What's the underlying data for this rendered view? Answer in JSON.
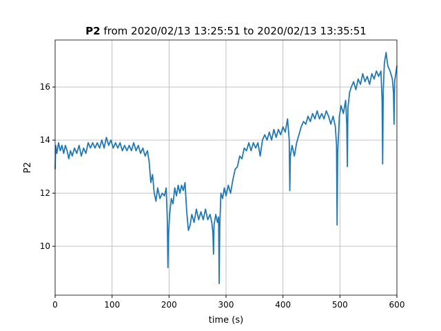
{
  "chart_data": {
    "type": "line",
    "title_name": "P2",
    "title_rest": "from 2020/02/13 13:25:51 to 2020/02/13 13:35:51",
    "xlabel": "time (s)",
    "ylabel": "P2",
    "xlim": [
      0,
      600
    ],
    "xticks": [
      0,
      100,
      200,
      300,
      400,
      500,
      600
    ],
    "ylim": [
      8.16,
      17.77
    ],
    "yticks": [
      10,
      12,
      14,
      16
    ],
    "grid": true,
    "series": [
      {
        "color": "#1f77b4",
        "x": [
          0,
          1,
          3,
          6,
          9,
          12,
          15,
          18,
          21,
          24,
          27,
          30,
          34,
          38,
          42,
          46,
          50,
          54,
          58,
          62,
          66,
          70,
          74,
          78,
          82,
          86,
          90,
          94,
          98,
          102,
          106,
          110,
          114,
          118,
          122,
          126,
          130,
          134,
          138,
          142,
          146,
          150,
          154,
          158,
          162,
          165,
          168,
          171,
          174,
          177,
          180,
          184,
          188,
          192,
          195,
          197,
          198,
          199,
          201,
          204,
          207,
          210,
          213,
          216,
          219,
          222,
          225,
          228,
          231,
          234,
          237,
          240,
          244,
          248,
          252,
          256,
          260,
          264,
          268,
          272,
          275,
          277,
          278,
          279,
          282,
          285,
          287,
          288,
          289,
          291,
          294,
          297,
          300,
          304,
          308,
          312,
          316,
          320,
          324,
          328,
          332,
          336,
          340,
          344,
          348,
          352,
          356,
          360,
          364,
          368,
          372,
          376,
          380,
          384,
          388,
          392,
          396,
          400,
          404,
          408,
          411,
          412,
          413,
          416,
          420,
          424,
          428,
          432,
          436,
          440,
          444,
          448,
          452,
          456,
          460,
          464,
          468,
          472,
          476,
          480,
          484,
          488,
          492,
          494,
          495,
          496,
          499,
          502,
          506,
          510,
          512,
          513,
          514,
          517,
          520,
          524,
          528,
          532,
          536,
          540,
          544,
          548,
          552,
          556,
          560,
          564,
          568,
          572,
          574,
          575,
          576,
          578,
          581,
          584,
          588,
          592,
          594,
          595,
          596,
          598,
          600
        ],
        "values": [
          12.9,
          13.8,
          13.5,
          13.9,
          13.6,
          13.8,
          13.5,
          13.8,
          13.6,
          13.3,
          13.6,
          13.4,
          13.7,
          13.5,
          13.8,
          13.4,
          13.7,
          13.5,
          13.9,
          13.7,
          13.9,
          13.7,
          13.9,
          13.7,
          14.0,
          13.7,
          14.1,
          13.8,
          14.0,
          13.7,
          13.9,
          13.7,
          13.9,
          13.6,
          13.8,
          13.6,
          13.8,
          13.6,
          13.9,
          13.6,
          13.8,
          13.5,
          13.7,
          13.4,
          13.6,
          13.2,
          12.4,
          12.7,
          12.0,
          11.7,
          12.2,
          11.8,
          12.0,
          11.9,
          12.2,
          11.0,
          9.2,
          10.4,
          11.2,
          11.8,
          11.6,
          12.2,
          11.9,
          12.3,
          12.0,
          12.3,
          12.1,
          12.4,
          11.3,
          10.6,
          10.8,
          11.2,
          10.9,
          11.4,
          11.0,
          11.3,
          11.0,
          11.4,
          11.0,
          11.2,
          10.9,
          10.5,
          9.7,
          10.8,
          11.2,
          10.9,
          11.1,
          8.6,
          10.7,
          12.0,
          11.8,
          12.2,
          11.9,
          12.3,
          12.0,
          12.5,
          12.9,
          13.0,
          13.4,
          13.3,
          13.7,
          13.6,
          13.9,
          13.6,
          13.9,
          13.7,
          13.9,
          13.4,
          14.0,
          14.2,
          14.0,
          14.3,
          14.0,
          14.4,
          14.1,
          14.4,
          14.2,
          14.5,
          14.3,
          14.8,
          14.0,
          12.1,
          13.4,
          13.8,
          13.4,
          13.9,
          14.2,
          14.5,
          14.7,
          14.6,
          14.9,
          14.7,
          15.0,
          14.8,
          15.1,
          14.8,
          15.0,
          14.8,
          15.1,
          14.9,
          14.6,
          14.9,
          14.5,
          13.8,
          10.8,
          13.5,
          14.9,
          15.3,
          15.0,
          15.5,
          14.6,
          13.0,
          15.2,
          15.8,
          16.0,
          16.2,
          15.9,
          16.3,
          16.1,
          16.5,
          16.2,
          16.4,
          16.1,
          16.5,
          16.3,
          16.6,
          16.4,
          16.6,
          15.5,
          13.1,
          15.8,
          16.9,
          17.3,
          16.8,
          16.6,
          16.3,
          15.8,
          14.6,
          16.2,
          16.5,
          16.8
        ]
      }
    ]
  }
}
